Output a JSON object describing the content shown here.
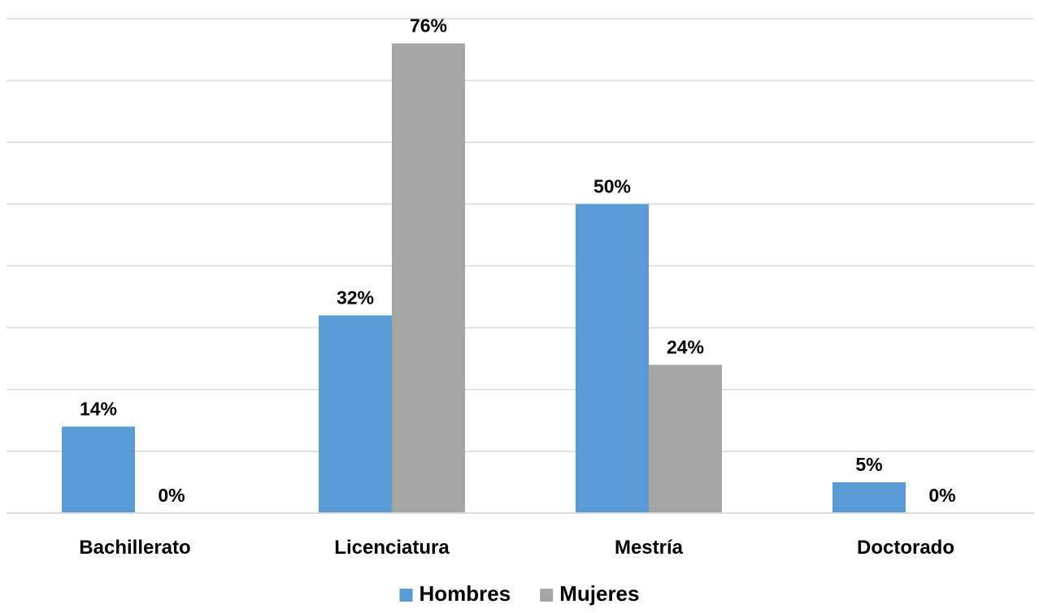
{
  "chart_data": {
    "type": "bar",
    "categories": [
      "Bachillerato",
      "Licenciatura",
      "Mestría",
      "Doctorado"
    ],
    "series": [
      {
        "name": "Hombres",
        "values": [
          14,
          32,
          50,
          5
        ],
        "labels": [
          "14%",
          "32%",
          "50%",
          "5%"
        ],
        "color": "#5b9bd5"
      },
      {
        "name": "Mujeres",
        "values": [
          0,
          76,
          24,
          0
        ],
        "labels": [
          "0%",
          "76%",
          "24%",
          "0%"
        ],
        "color": "#a5a5a5"
      }
    ],
    "ylim": [
      0,
      80
    ],
    "y_gridline_step": 10,
    "y_tick_labels_visible": false,
    "grid": true,
    "legend_position": "bottom",
    "data_label_color": "#000000",
    "gridline_color": "#d9d9d9"
  }
}
